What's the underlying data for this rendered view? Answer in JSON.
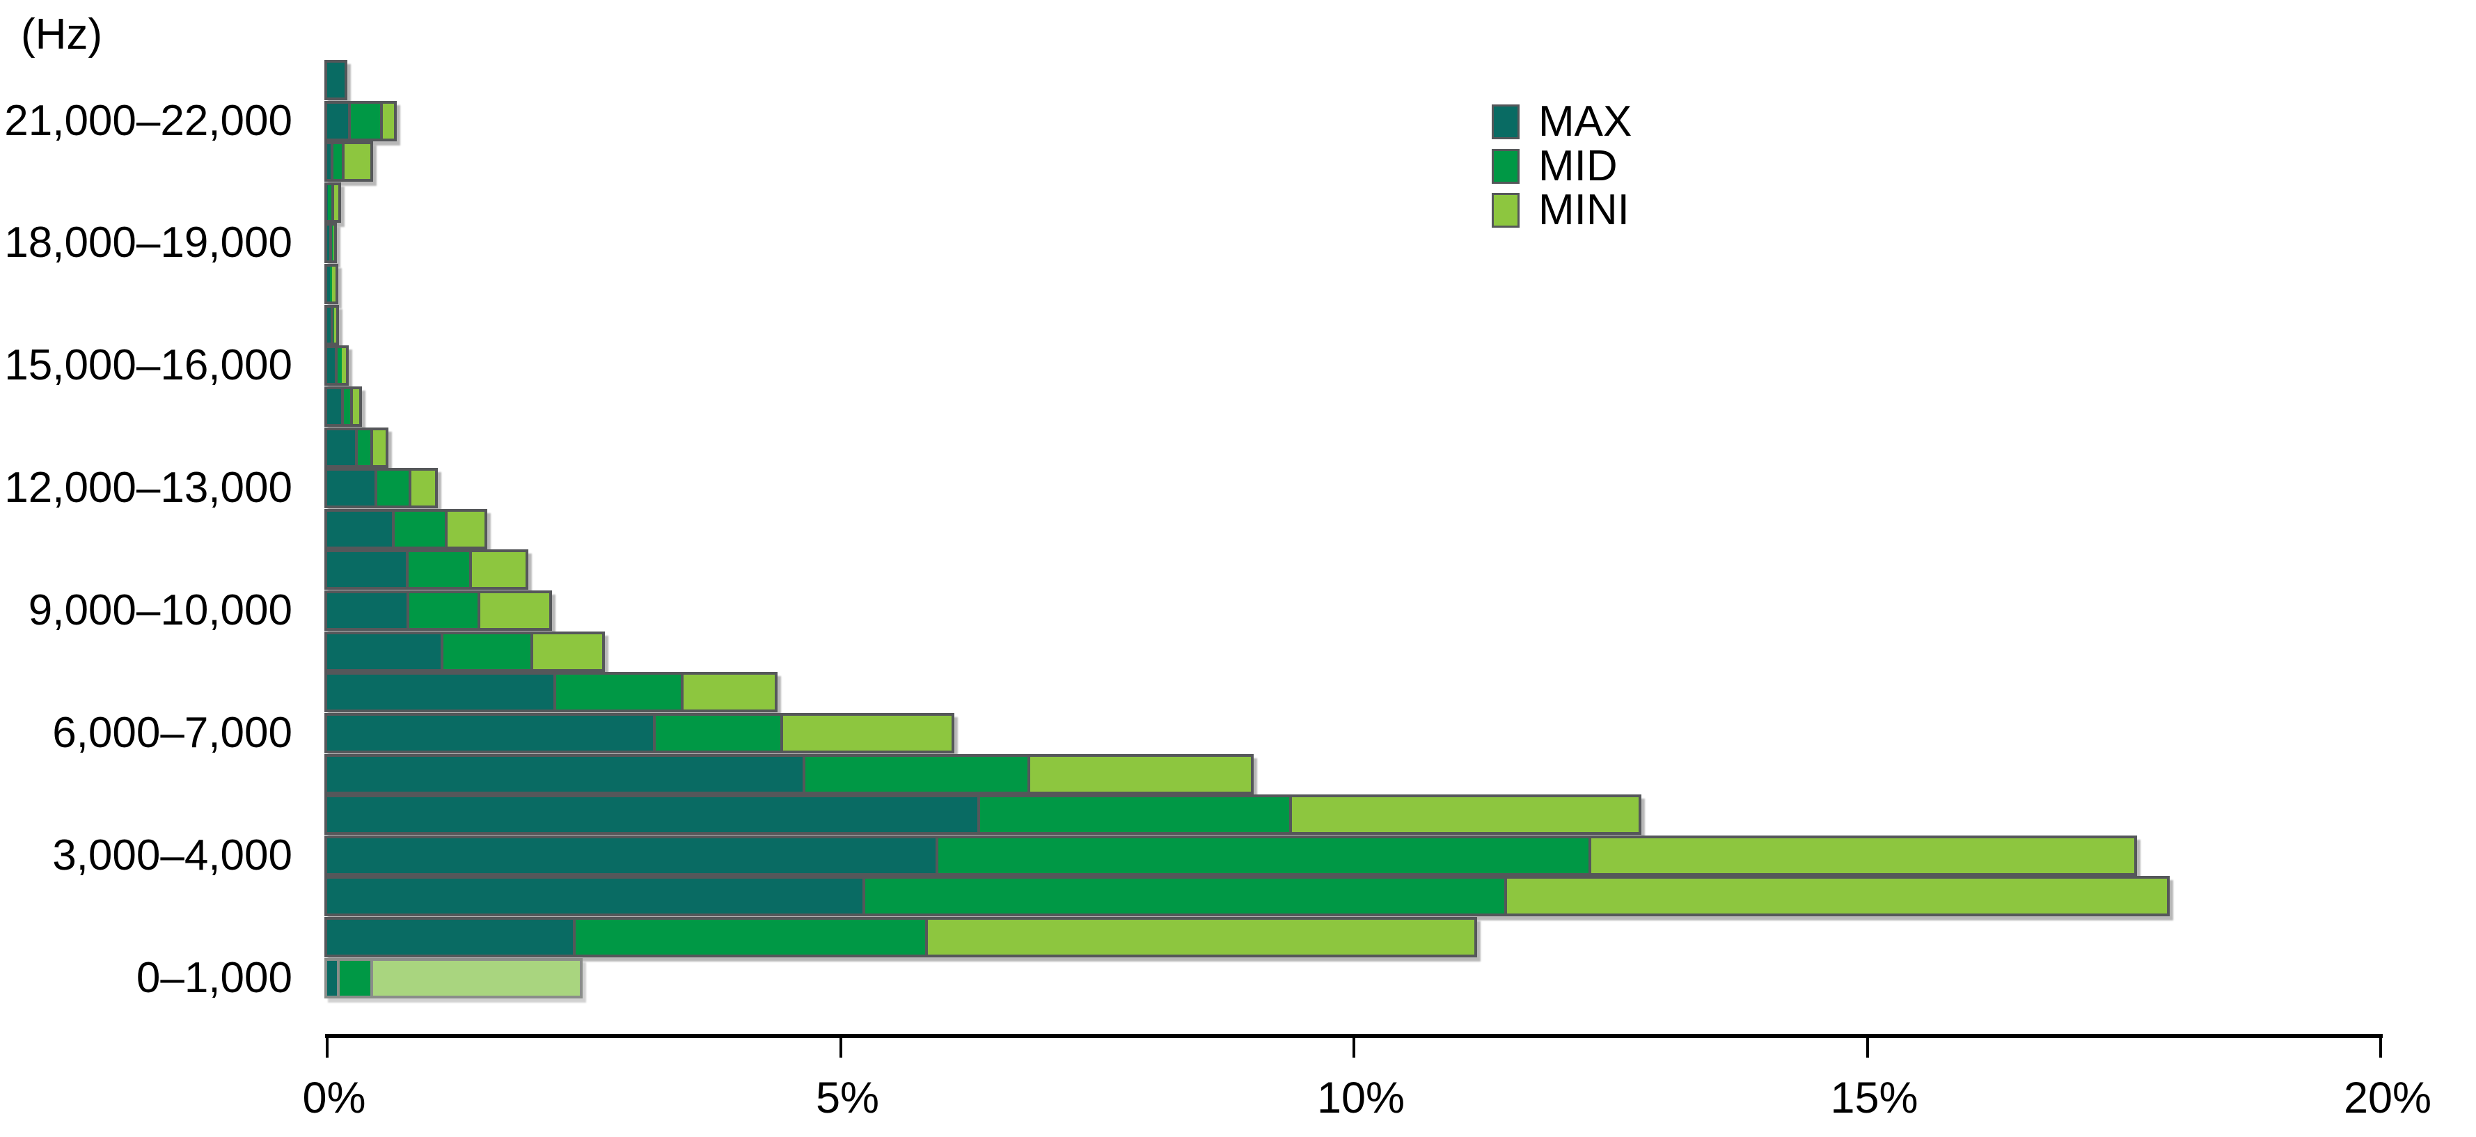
{
  "title": "(Hz)",
  "colors": {
    "max": "#096b63",
    "mid": "#009845",
    "mini": "#8dc63f",
    "mini_pale": "#a9d57f",
    "segment_border": "#55575a",
    "pale_bar_border": "#8a8d8a",
    "axis": "#000000",
    "text": "#000000",
    "background": "#ffffff"
  },
  "legend": {
    "items": [
      {
        "label": "MAX",
        "color_key": "max"
      },
      {
        "label": "MID",
        "color_key": "mid"
      },
      {
        "label": "MINI",
        "color_key": "mini"
      }
    ]
  },
  "chart_data": {
    "type": "bar",
    "stacked": true,
    "orientation": "horizontal",
    "ylabel": "(Hz)",
    "xlabel": "",
    "xlim": [
      0,
      20
    ],
    "grid": false,
    "legend_position": "top-right",
    "x_ticks": [
      {
        "value": 0,
        "label": "0%"
      },
      {
        "value": 5,
        "label": "5%"
      },
      {
        "value": 10,
        "label": "10%"
      },
      {
        "value": 15,
        "label": "15%"
      },
      {
        "value": 20,
        "label": "20%"
      }
    ],
    "series_names": [
      "MAX",
      "MID",
      "MINI"
    ],
    "visible_band_labels": [
      "21,000–22,000",
      "18,000–19,000",
      "15,000–16,000",
      "12,000–13,000",
      "9,000–10,000",
      "6,000–7,000",
      "3,000–4,000",
      "0–1,000"
    ],
    "rows": [
      {
        "band": "",
        "values": [
          0.17,
          0.0,
          0.0
        ]
      },
      {
        "band": "21,000–22,000",
        "values": [
          0.23,
          0.31,
          0.11
        ]
      },
      {
        "band": "",
        "values": [
          0.06,
          0.11,
          0.25
        ]
      },
      {
        "band": "",
        "values": [
          0.01,
          0.06,
          0.04
        ]
      },
      {
        "band": "18,000–19,000",
        "values": [
          0.05,
          0.01,
          0.01
        ]
      },
      {
        "band": "",
        "values": [
          0.03,
          0.02,
          0.03
        ]
      },
      {
        "band": "",
        "values": [
          0.06,
          0.01,
          0.02
        ]
      },
      {
        "band": "15,000–16,000",
        "values": [
          0.1,
          0.04,
          0.04
        ]
      },
      {
        "band": "",
        "values": [
          0.16,
          0.09,
          0.06
        ]
      },
      {
        "band": "",
        "values": [
          0.3,
          0.15,
          0.12
        ]
      },
      {
        "band": "12,000–13,000",
        "values": [
          0.49,
          0.33,
          0.23
        ]
      },
      {
        "band": "",
        "values": [
          0.66,
          0.51,
          0.36
        ]
      },
      {
        "band": "",
        "values": [
          0.79,
          0.62,
          0.52
        ]
      },
      {
        "band": "9,000–10,000",
        "values": [
          0.8,
          0.69,
          0.67
        ]
      },
      {
        "band": "",
        "values": [
          1.13,
          0.88,
          0.67
        ]
      },
      {
        "band": "",
        "values": [
          2.23,
          1.24,
          0.89
        ]
      },
      {
        "band": "6,000–7,000",
        "values": [
          3.2,
          1.24,
          1.64
        ]
      },
      {
        "band": "",
        "values": [
          4.66,
          2.19,
          2.15
        ]
      },
      {
        "band": "",
        "values": [
          6.36,
          3.04,
          3.37
        ]
      },
      {
        "band": "3,000–4,000",
        "values": [
          5.95,
          6.36,
          5.29
        ]
      },
      {
        "band": "",
        "values": [
          5.24,
          6.25,
          6.43
        ]
      },
      {
        "band": "",
        "values": [
          2.42,
          3.43,
          5.32
        ]
      },
      {
        "band": "0–1,000",
        "values": [
          0.12,
          0.33,
          2.01
        ],
        "pale_mini": true
      }
    ]
  }
}
